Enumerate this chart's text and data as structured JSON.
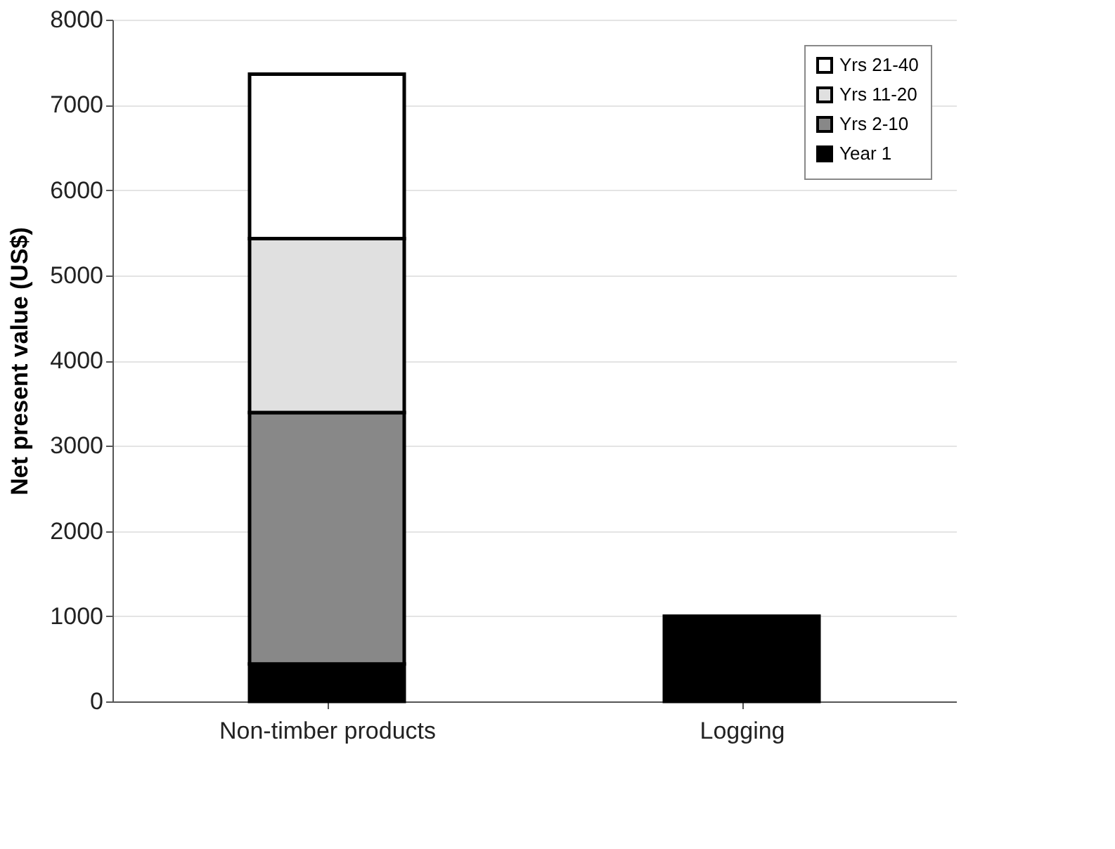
{
  "chart_data": {
    "type": "bar",
    "stacked": true,
    "ylabel": "Net present value (US$)",
    "categories": [
      "Non-timber products",
      "Logging"
    ],
    "series": [
      {
        "name": "Year 1",
        "color": "#000000",
        "values": [
          440,
          1000
        ]
      },
      {
        "name": "Yrs 2-10",
        "color": "#888888",
        "values": [
          2950,
          null
        ]
      },
      {
        "name": "Yrs 11-20",
        "color": "#e0e0e0",
        "values": [
          2040,
          null
        ]
      },
      {
        "name": "Yrs 21-40",
        "color": "#ffffff",
        "values": [
          1930,
          null
        ]
      }
    ],
    "ylim": [
      0,
      8000
    ],
    "yticks": [
      0,
      1000,
      2000,
      3000,
      4000,
      5000,
      6000,
      7000,
      8000
    ],
    "grid": "y",
    "legend": "top right"
  }
}
